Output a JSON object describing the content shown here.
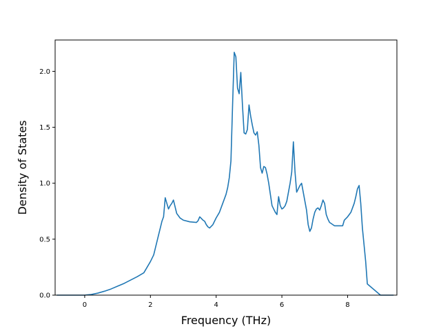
{
  "chart_data": {
    "type": "line",
    "title": "",
    "xlabel": "Frequency (THz)",
    "ylabel": "Density of States",
    "xlim": [
      -0.9,
      9.5
    ],
    "ylim": [
      0.0,
      2.28
    ],
    "xticks": [
      0,
      2,
      4,
      6,
      8
    ],
    "xtick_labels": [
      "0",
      "2",
      "4",
      "6",
      "8"
    ],
    "yticks": [
      0.0,
      0.5,
      1.0,
      1.5,
      2.0
    ],
    "ytick_labels": [
      "0.0",
      "0.5",
      "1.0",
      "1.5",
      "2.0"
    ],
    "grid": false,
    "legend": "none",
    "series": [
      {
        "color": "#1f77b4",
        "x": [
          -0.85,
          -0.5,
          -0.2,
          0.0,
          0.2,
          0.4,
          0.6,
          0.8,
          1.0,
          1.2,
          1.4,
          1.6,
          1.8,
          1.9,
          2.0,
          2.1,
          2.15,
          2.2,
          2.25,
          2.3,
          2.35,
          2.4,
          2.45,
          2.5,
          2.55,
          2.6,
          2.65,
          2.7,
          2.8,
          2.9,
          3.0,
          3.2,
          3.4,
          3.45,
          3.5,
          3.55,
          3.6,
          3.65,
          3.7,
          3.75,
          3.8,
          3.9,
          4.0,
          4.1,
          4.2,
          4.25,
          4.3,
          4.35,
          4.4,
          4.45,
          4.5,
          4.55,
          4.6,
          4.65,
          4.7,
          4.75,
          4.8,
          4.85,
          4.9,
          4.95,
          5.0,
          5.05,
          5.1,
          5.15,
          5.2,
          5.25,
          5.3,
          5.35,
          5.4,
          5.45,
          5.5,
          5.55,
          5.6,
          5.65,
          5.7,
          5.75,
          5.8,
          5.85,
          5.9,
          5.95,
          6.0,
          6.05,
          6.1,
          6.15,
          6.2,
          6.25,
          6.3,
          6.35,
          6.4,
          6.45,
          6.5,
          6.55,
          6.6,
          6.65,
          6.7,
          6.75,
          6.8,
          6.85,
          6.9,
          6.95,
          7.0,
          7.05,
          7.1,
          7.15,
          7.2,
          7.25,
          7.3,
          7.35,
          7.4,
          7.45,
          7.5,
          7.6,
          7.7,
          7.8,
          7.85,
          7.9,
          8.0,
          8.1,
          8.15,
          8.2,
          8.25,
          8.3,
          8.35,
          8.4,
          8.45,
          8.5,
          8.55,
          8.6,
          9.0,
          9.4
        ],
        "y": [
          0.0,
          0.0,
          0.0,
          0.0,
          0.006,
          0.018,
          0.035,
          0.055,
          0.08,
          0.105,
          0.135,
          0.165,
          0.2,
          0.25,
          0.3,
          0.36,
          0.42,
          0.48,
          0.54,
          0.6,
          0.66,
          0.7,
          0.87,
          0.82,
          0.77,
          0.8,
          0.82,
          0.85,
          0.73,
          0.69,
          0.67,
          0.655,
          0.65,
          0.665,
          0.7,
          0.685,
          0.67,
          0.66,
          0.63,
          0.61,
          0.6,
          0.63,
          0.69,
          0.74,
          0.82,
          0.86,
          0.9,
          0.96,
          1.05,
          1.2,
          1.7,
          2.17,
          2.13,
          1.85,
          1.8,
          1.99,
          1.7,
          1.45,
          1.44,
          1.48,
          1.7,
          1.6,
          1.52,
          1.45,
          1.43,
          1.46,
          1.34,
          1.14,
          1.09,
          1.15,
          1.14,
          1.08,
          1.0,
          0.9,
          0.8,
          0.77,
          0.74,
          0.72,
          0.88,
          0.8,
          0.77,
          0.78,
          0.8,
          0.84,
          0.92,
          1.0,
          1.1,
          1.37,
          1.1,
          0.92,
          0.95,
          0.98,
          1.0,
          0.92,
          0.84,
          0.76,
          0.63,
          0.57,
          0.6,
          0.68,
          0.74,
          0.77,
          0.78,
          0.76,
          0.8,
          0.85,
          0.82,
          0.72,
          0.68,
          0.65,
          0.64,
          0.62,
          0.62,
          0.62,
          0.62,
          0.67,
          0.7,
          0.74,
          0.78,
          0.82,
          0.88,
          0.95,
          0.98,
          0.82,
          0.6,
          0.45,
          0.3,
          0.1,
          0.0,
          0.0
        ]
      }
    ]
  }
}
